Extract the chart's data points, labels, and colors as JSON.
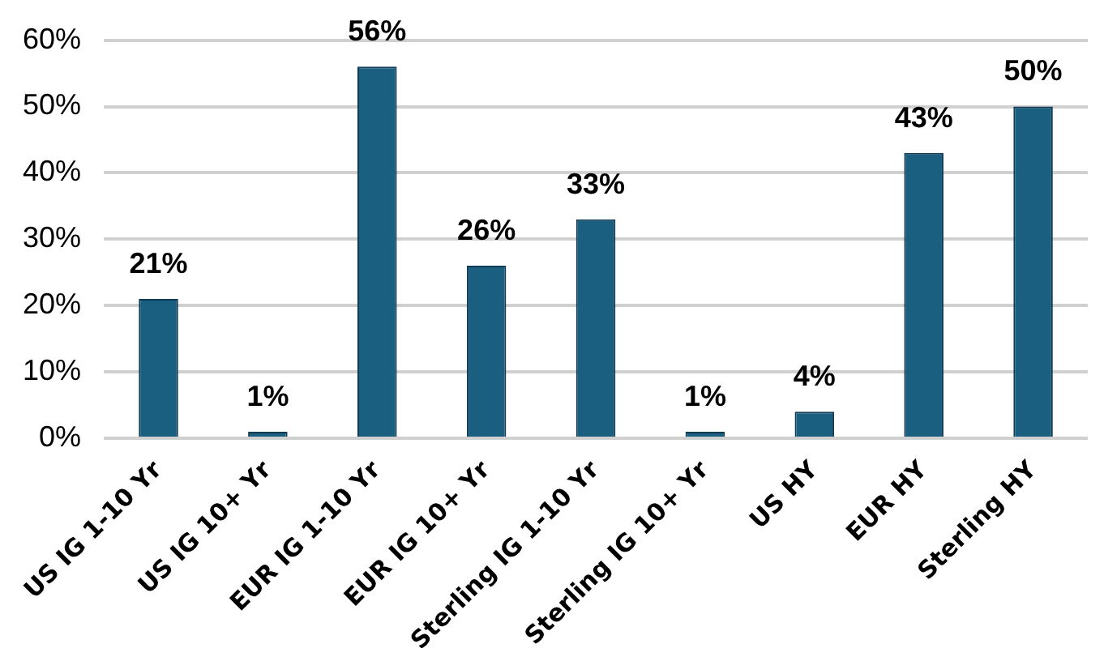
{
  "chart_data": {
    "type": "bar",
    "categories": [
      "US IG 1-10 Yr",
      "US IG 10+ Yr",
      "EUR IG 1-10 Yr",
      "EUR IG 10+ Yr",
      "Sterling IG 1-10 Yr",
      "Sterling IG 10+ Yr",
      "US HY",
      "EUR HY",
      "Sterling HY"
    ],
    "values": [
      21,
      1,
      56,
      26,
      33,
      1,
      4,
      43,
      50
    ],
    "color": "#1a5e80",
    "ylim": [
      0,
      60
    ],
    "yticks": [
      {
        "value": 0,
        "label": "0%"
      },
      {
        "value": 10,
        "label": "10%"
      },
      {
        "value": 20,
        "label": "20%"
      },
      {
        "value": 30,
        "label": "30%"
      },
      {
        "value": 40,
        "label": "40%"
      },
      {
        "value": 50,
        "label": "50%"
      },
      {
        "value": 60,
        "label": "60%"
      }
    ],
    "grid": "y",
    "value_labels": [
      "21%",
      "1%",
      "56%",
      "26%",
      "33%",
      "1%",
      "4%",
      "43%",
      "50%"
    ],
    "legend": false
  }
}
